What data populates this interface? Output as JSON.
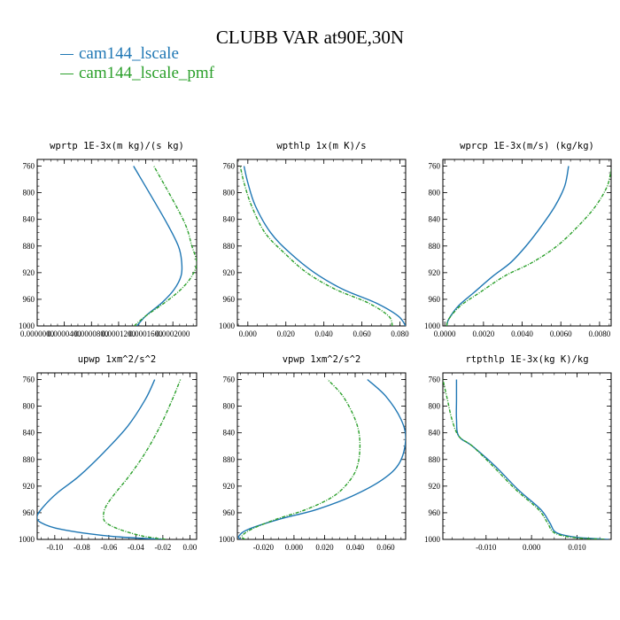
{
  "title": "CLUBB VAR at90E,30N",
  "legend": [
    {
      "label": "cam144_lscale",
      "color": "#1f77b4",
      "dash": "none"
    },
    {
      "label": "cam144_lscale_pmf",
      "color": "#2ca02c",
      "dash": "4,1.5,1,1.5"
    }
  ],
  "chart_data": [
    {
      "type": "line",
      "title": "wprtp  1E-3x(m kg)/(s kg)",
      "xlim": [
        0,
        0.000235
      ],
      "ylim": [
        1000,
        750
      ],
      "xticks": [
        0,
        4e-05,
        8e-05,
        0.00012,
        0.00016,
        0.0002
      ],
      "xticklabels": [
        "0.0000000",
        "0.0000400",
        "0.0000800",
        "0.0001200",
        "0.0001600",
        "0.0002000"
      ],
      "yticks": [
        760,
        800,
        840,
        880,
        920,
        960,
        1000
      ],
      "yticklabels": [
        "760",
        "800",
        "840",
        "880",
        "920",
        "960",
        "1000"
      ],
      "series": [
        {
          "name": "cam144_lscale",
          "x": [
            0.000147,
            0.00016,
            0.000184,
            0.000202,
            0.000212,
            0.000213,
            0.000208,
            0.000188,
            0.000142
          ],
          "y": [
            1000,
            985,
            965,
            945,
            925,
            905,
            880,
            840,
            760
          ]
        },
        {
          "name": "cam144_lscale_pmf",
          "x": [
            0.000143,
            0.00016,
            0.000188,
            0.000212,
            0.000228,
            0.000235,
            0.000228,
            0.000215,
            0.000172
          ],
          "y": [
            1000,
            985,
            965,
            945,
            925,
            905,
            880,
            840,
            760
          ]
        }
      ]
    },
    {
      "type": "line",
      "title": "wpthlp  1x(m K)/s",
      "xlim": [
        -0.0055,
        0.083
      ],
      "ylim": [
        1000,
        750
      ],
      "xticks": [
        0,
        0.02,
        0.04,
        0.06,
        0.08
      ],
      "xticklabels": [
        "0.000",
        "0.020",
        "0.040",
        "0.060",
        "0.080"
      ],
      "yticks": [
        760,
        800,
        840,
        880,
        920,
        960,
        1000
      ],
      "yticklabels": [
        "760",
        "800",
        "840",
        "880",
        "920",
        "960",
        "1000"
      ],
      "series": [
        {
          "name": "cam144_lscale",
          "x": [
            0.083,
            0.079,
            0.067,
            0.05,
            0.035,
            0.022,
            0.012,
            0.004,
            0.0,
            -0.002
          ],
          "y": [
            1000,
            985,
            965,
            945,
            920,
            890,
            860,
            820,
            785,
            760
          ]
        },
        {
          "name": "cam144_lscale_pmf",
          "x": [
            0.076,
            0.074,
            0.063,
            0.046,
            0.031,
            0.019,
            0.009,
            0.002,
            -0.002,
            -0.004
          ],
          "y": [
            1000,
            985,
            965,
            945,
            920,
            890,
            860,
            820,
            785,
            760
          ]
        }
      ]
    },
    {
      "type": "line",
      "title": "wprcp  1E-3x(m/s) (kg/kg)",
      "xlim": [
        -0.0001,
        0.0086
      ],
      "ylim": [
        1000,
        750
      ],
      "xticks": [
        0,
        0.002,
        0.004,
        0.006,
        0.008
      ],
      "xticklabels": [
        "0.0000",
        "0.0020",
        "0.0040",
        "0.0060",
        "0.0080"
      ],
      "yticks": [
        760,
        800,
        840,
        880,
        920,
        960,
        1000
      ],
      "yticklabels": [
        "760",
        "800",
        "840",
        "880",
        "920",
        "960",
        "1000"
      ],
      "series": [
        {
          "name": "cam144_lscale",
          "x": [
            0.0001,
            0.0002,
            0.0007,
            0.0015,
            0.0025,
            0.0034,
            0.0042,
            0.005,
            0.0057,
            0.0062,
            0.0064
          ],
          "y": [
            1000,
            990,
            970,
            950,
            925,
            905,
            880,
            850,
            820,
            790,
            760
          ]
        },
        {
          "name": "cam144_lscale_pmf",
          "x": [
            0.0001,
            0.0002,
            0.0008,
            0.0018,
            0.0031,
            0.0045,
            0.0058,
            0.0069,
            0.0078,
            0.0084,
            0.0086
          ],
          "y": [
            1000,
            990,
            970,
            950,
            925,
            905,
            880,
            850,
            820,
            790,
            765
          ]
        }
      ]
    },
    {
      "type": "line",
      "title": "upwp  1xm^2/s^2",
      "xlim": [
        -0.113,
        0.005
      ],
      "ylim": [
        1000,
        750
      ],
      "xticks": [
        -0.1,
        -0.08,
        -0.06,
        -0.04,
        -0.02,
        0.0
      ],
      "xticklabels": [
        "-0.10",
        "-0.08",
        "-0.06",
        "-0.04",
        "-0.02",
        "0.00"
      ],
      "yticks": [
        760,
        800,
        840,
        880,
        920,
        960,
        1000
      ],
      "yticklabels": [
        "760",
        "800",
        "840",
        "880",
        "920",
        "960",
        "1000"
      ],
      "series": [
        {
          "name": "cam144_lscale",
          "x": [
            -0.02,
            -0.06,
            -0.095,
            -0.11,
            -0.113,
            -0.108,
            -0.098,
            -0.082,
            -0.064,
            -0.046,
            -0.033,
            -0.026
          ],
          "y": [
            1000,
            995,
            985,
            975,
            965,
            950,
            930,
            905,
            870,
            830,
            790,
            760
          ]
        },
        {
          "name": "cam144_lscale_pmf",
          "x": [
            -0.018,
            -0.035,
            -0.052,
            -0.062,
            -0.064,
            -0.062,
            -0.055,
            -0.045,
            -0.033,
            -0.022,
            -0.013,
            -0.007
          ],
          "y": [
            1000,
            995,
            985,
            975,
            965,
            950,
            930,
            905,
            870,
            830,
            790,
            760
          ]
        }
      ]
    },
    {
      "type": "line",
      "title": "vpwp  1xm^2/s^2",
      "xlim": [
        -0.037,
        0.073
      ],
      "ylim": [
        1000,
        750
      ],
      "xticks": [
        -0.02,
        0.0,
        0.02,
        0.04,
        0.06
      ],
      "xticklabels": [
        "-0.020",
        "0.000",
        "0.020",
        "0.040",
        "0.060"
      ],
      "yticks": [
        760,
        800,
        840,
        880,
        920,
        960,
        1000
      ],
      "yticklabels": [
        "760",
        "800",
        "840",
        "880",
        "920",
        "960",
        "1000"
      ],
      "series": [
        {
          "name": "cam144_lscale",
          "x": [
            -0.035,
            -0.036,
            -0.03,
            -0.01,
            0.015,
            0.038,
            0.058,
            0.069,
            0.073,
            0.07,
            0.06,
            0.048
          ],
          "y": [
            1000,
            995,
            985,
            970,
            955,
            935,
            910,
            885,
            850,
            820,
            785,
            760
          ]
        },
        {
          "name": "cam144_lscale_pmf",
          "x": [
            -0.032,
            -0.034,
            -0.028,
            -0.012,
            0.008,
            0.026,
            0.037,
            0.042,
            0.043,
            0.04,
            0.032,
            0.022
          ],
          "y": [
            1000,
            995,
            985,
            970,
            955,
            935,
            910,
            885,
            850,
            820,
            785,
            760
          ]
        }
      ]
    },
    {
      "type": "line",
      "title": "rtpthlp  1E-3x(kg K)/kg",
      "xlim": [
        -0.0195,
        0.0175
      ],
      "ylim": [
        1000,
        750
      ],
      "xticks": [
        -0.01,
        0.0,
        0.01
      ],
      "xticklabels": [
        "-0.010",
        "0.000",
        "0.010"
      ],
      "yticks": [
        760,
        800,
        840,
        880,
        920,
        960,
        1000
      ],
      "yticklabels": [
        "760",
        "800",
        "840",
        "880",
        "920",
        "960",
        "1000"
      ],
      "series": [
        {
          "name": "cam144_lscale",
          "x": [
            0.017,
            0.01,
            0.0055,
            0.004,
            0.002,
            -0.003,
            -0.008,
            -0.013,
            -0.016,
            -0.0165,
            -0.0165,
            -0.0165
          ],
          "y": [
            1000,
            997,
            990,
            975,
            955,
            925,
            890,
            860,
            845,
            820,
            790,
            760
          ]
        },
        {
          "name": "cam144_lscale_pmf",
          "x": [
            0.016,
            0.009,
            0.005,
            0.0035,
            0.0015,
            -0.0035,
            -0.0085,
            -0.013,
            -0.016,
            -0.0175,
            -0.0185,
            -0.0195
          ],
          "y": [
            1000,
            997,
            990,
            975,
            955,
            925,
            890,
            860,
            845,
            820,
            790,
            760
          ]
        }
      ]
    }
  ]
}
